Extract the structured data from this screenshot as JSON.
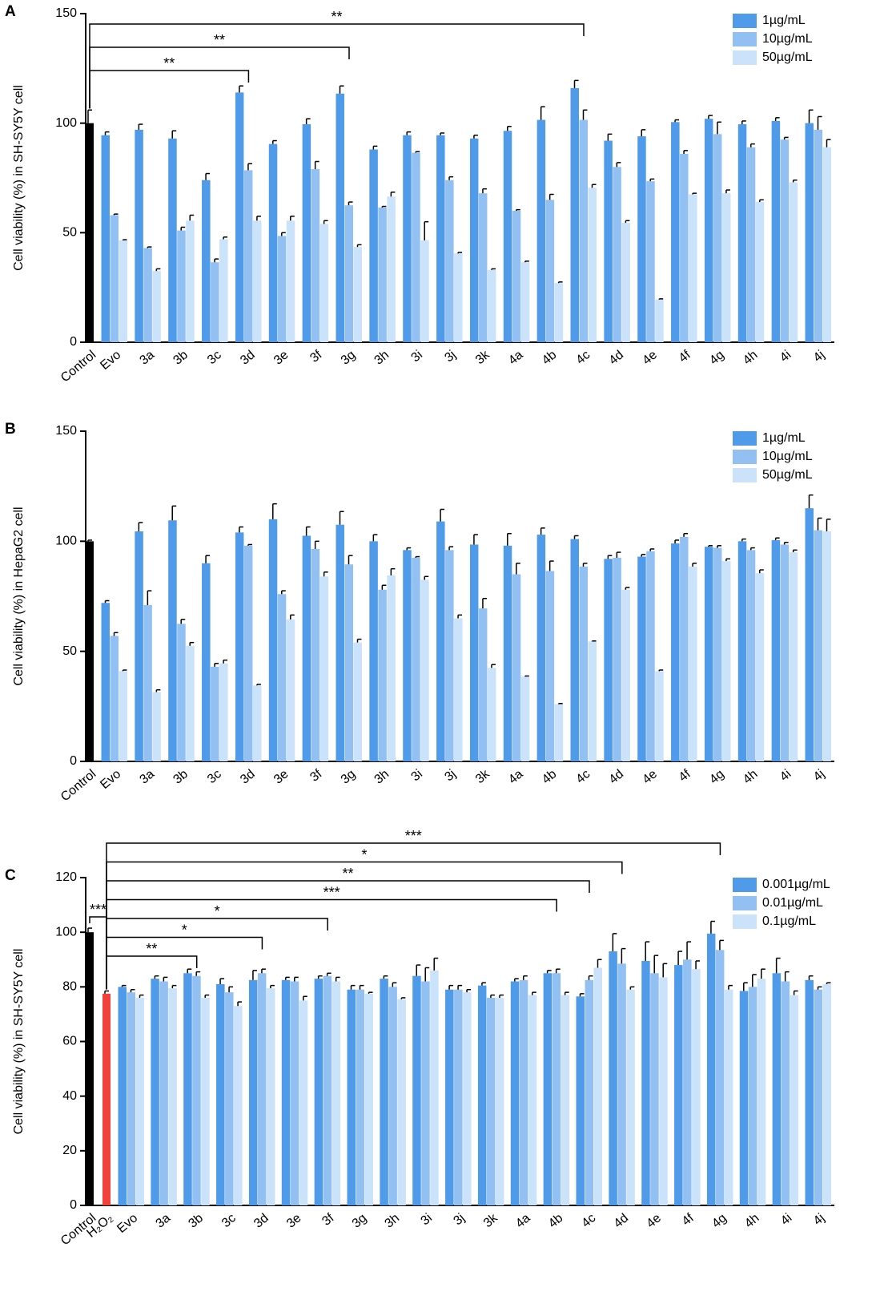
{
  "chart_data": [
    {
      "type": "bar",
      "panel_label": "A",
      "y_label": "Cell viability (%) in SH-SY5Y cell",
      "categories": [
        "Control",
        "Evo",
        "3a",
        "3b",
        "3c",
        "3d",
        "3e",
        "3f",
        "3g",
        "3h",
        "3i",
        "3j",
        "3k",
        "4a",
        "4b",
        "4c",
        "4d",
        "4e",
        "4f",
        "4g",
        "4h",
        "4i",
        "4j"
      ],
      "reference_bars": [
        {
          "value": 100,
          "error": 6,
          "color": "#000000"
        }
      ],
      "series": [
        {
          "name": "1µg/mL",
          "color": "#4f9bea",
          "values": [
            null,
            94.5,
            97,
            93,
            74,
            114,
            90.5,
            99.5,
            113.5,
            88,
            94.5,
            94.5,
            93,
            96.5,
            101.5,
            116,
            92,
            94,
            100.5,
            102,
            99.5,
            101,
            100
          ],
          "errors": [
            null,
            1.5,
            2.5,
            3.5,
            3,
            3,
            1.5,
            2.5,
            3.5,
            1.5,
            1.5,
            1,
            1.5,
            2,
            6,
            3.5,
            3,
            3,
            1,
            1.5,
            1.5,
            1.5,
            6
          ]
        },
        {
          "name": "10µg/mL",
          "color": "#93c0f3",
          "values": [
            null,
            58,
            43,
            51,
            36.5,
            78.5,
            48.5,
            79,
            62.5,
            61.5,
            86.5,
            74,
            68,
            60,
            65,
            101.5,
            80,
            73.5,
            86,
            95,
            89,
            92.5,
            97
          ],
          "errors": [
            null,
            0.5,
            0.5,
            1.5,
            1.5,
            3,
            1.5,
            3.5,
            1.5,
            0.5,
            0.5,
            1.5,
            2,
            0.5,
            2.5,
            4.5,
            2,
            1,
            1.5,
            5.5,
            1.5,
            1,
            6
          ]
        },
        {
          "name": "50µg/mL",
          "color": "#cbe2fb",
          "values": [
            null,
            46.5,
            32.5,
            55.5,
            47,
            55.5,
            55.5,
            54,
            43.5,
            66.5,
            46.5,
            40.5,
            33,
            36.5,
            27,
            70.5,
            54.5,
            19.5,
            67.5,
            68,
            64,
            73,
            89
          ],
          "errors": [
            null,
            0.3,
            1,
            2.5,
            1,
            2,
            2,
            1.5,
            1,
            2,
            8.5,
            0.5,
            0.5,
            0.5,
            0.5,
            1.5,
            1,
            0.3,
            0.5,
            1.5,
            1,
            1,
            3.5
          ]
        }
      ],
      "ylim": [
        0,
        150
      ],
      "yticks": [
        0,
        50,
        100,
        150
      ],
      "brackets": [
        {
          "from": "Control",
          "to": "3d",
          "label": "**"
        },
        {
          "from": "Control",
          "to": "3g",
          "label": "**"
        },
        {
          "from": "Control",
          "to": "4c",
          "label": "**"
        }
      ]
    },
    {
      "type": "bar",
      "panel_label": "B",
      "y_label": "Cell viability (%) in HepaG2 cell",
      "categories": [
        "Control",
        "Evo",
        "3a",
        "3b",
        "3c",
        "3d",
        "3e",
        "3f",
        "3g",
        "3h",
        "3i",
        "3j",
        "3k",
        "4a",
        "4b",
        "4c",
        "4d",
        "4e",
        "4f",
        "4g",
        "4h",
        "4i",
        "4j"
      ],
      "reference_bars": [
        {
          "value": 100,
          "error": 0.5,
          "color": "#000000"
        }
      ],
      "series": [
        {
          "name": "1µg/mL",
          "color": "#4f9bea",
          "values": [
            null,
            72,
            104.5,
            109.5,
            90,
            104,
            110,
            102.5,
            107.5,
            100,
            96,
            109,
            98.5,
            98,
            103,
            101,
            92,
            93,
            99,
            97.5,
            100,
            100.5,
            115
          ],
          "errors": [
            null,
            1,
            4,
            6.5,
            3.5,
            2.5,
            7,
            4,
            6,
            3,
            1,
            5.5,
            4.5,
            5.5,
            3,
            1.5,
            1.5,
            1,
            1.5,
            0.5,
            1,
            1,
            6
          ]
        },
        {
          "name": "10µg/mL",
          "color": "#93c0f3",
          "values": [
            null,
            57,
            71,
            62.5,
            43,
            98,
            76,
            96.5,
            89.5,
            78,
            92.5,
            96,
            69.5,
            85,
            86.5,
            88.5,
            92.5,
            95.5,
            102,
            97,
            96,
            98.5,
            105
          ],
          "errors": [
            null,
            1.5,
            6.5,
            2,
            1.5,
            0.5,
            1.5,
            3.5,
            4,
            2,
            0.5,
            1.5,
            4.5,
            5,
            4.5,
            1.5,
            2.5,
            1,
            1.5,
            1,
            1,
            1,
            5.5
          ]
        },
        {
          "name": "50µg/mL",
          "color": "#cbe2fb",
          "values": [
            null,
            41,
            31.5,
            52.5,
            44.5,
            34.5,
            64.5,
            84,
            54,
            84.5,
            82.5,
            65,
            42.5,
            38.5,
            26,
            54.5,
            78,
            41,
            88.5,
            91,
            85.5,
            95,
            104.5
          ],
          "errors": [
            null,
            0.5,
            1,
            1.5,
            1.5,
            0.5,
            2,
            2,
            1.5,
            3,
            1.5,
            1.5,
            1.5,
            0.3,
            0.3,
            0.2,
            1,
            0.5,
            1.5,
            1,
            1.5,
            1,
            5.5
          ]
        }
      ],
      "ylim": [
        0,
        150
      ],
      "yticks": [
        0,
        50,
        100,
        150
      ],
      "brackets": []
    },
    {
      "type": "bar",
      "panel_label": "C",
      "y_label": "Cell viability (%) in SH-SY5Y cell",
      "categories": [
        "Control",
        "H₂O₂",
        "Evo",
        "3a",
        "3b",
        "3c",
        "3d",
        "3e",
        "3f",
        "3g",
        "3h",
        "3i",
        "3j",
        "3k",
        "4a",
        "4b",
        "4c",
        "4d",
        "4e",
        "4f",
        "4g",
        "4h",
        "4i",
        "4j"
      ],
      "reference_bars": [
        {
          "value": 100,
          "error": 1.5,
          "color": "#000000"
        },
        {
          "value": 77.5,
          "error": 1,
          "color": "#f2403a"
        }
      ],
      "series": [
        {
          "name": "0.001µg/mL",
          "color": "#4f9bea",
          "values": [
            null,
            null,
            80,
            83,
            85,
            81,
            82.5,
            82.5,
            83,
            79,
            83,
            84,
            79,
            80.5,
            82,
            85,
            76.5,
            93,
            89.5,
            88,
            99.5,
            78.5,
            85,
            82.5
          ],
          "errors": [
            null,
            null,
            0.5,
            1,
            1.5,
            2,
            3.5,
            1,
            1,
            1.5,
            1,
            4,
            1.5,
            1,
            1,
            1,
            1,
            6.5,
            7,
            5,
            4.5,
            3,
            5.5,
            1.5
          ]
        },
        {
          "name": "0.01µg/mL",
          "color": "#93c0f3",
          "values": [
            null,
            null,
            78,
            82,
            84,
            78,
            85,
            82,
            84,
            79,
            80,
            82,
            79,
            76,
            82.5,
            85,
            82.5,
            88.5,
            85,
            90,
            93.5,
            80,
            82,
            79
          ],
          "errors": [
            null,
            null,
            1,
            1.5,
            1.5,
            2,
            1.5,
            1.5,
            1,
            1.5,
            1.5,
            5,
            1.5,
            1,
            1.5,
            1.5,
            1.5,
            5.5,
            6.5,
            6.5,
            3.5,
            4.5,
            3.5,
            1
          ]
        },
        {
          "name": "0.1µg/mL",
          "color": "#cbe2fb",
          "values": [
            null,
            null,
            76,
            79.5,
            76,
            73,
            79.5,
            75,
            82,
            77.5,
            75.5,
            86,
            78,
            76,
            77,
            77,
            87,
            79,
            83.5,
            86.5,
            79,
            83,
            77,
            81
          ],
          "errors": [
            null,
            null,
            1,
            1,
            1,
            1.5,
            1,
            1.5,
            1.5,
            0.5,
            0.5,
            4.5,
            1,
            1,
            1,
            1,
            3,
            1,
            5,
            3,
            1.5,
            3.5,
            1.5,
            0.5
          ]
        }
      ],
      "ylim": [
        0,
        120
      ],
      "yticks": [
        0,
        20,
        40,
        60,
        80,
        100,
        120
      ],
      "brackets": [
        {
          "from": "Control",
          "to": "H₂O₂",
          "label": "***"
        },
        {
          "from": "H₂O₂",
          "to": "3b",
          "label": "**"
        },
        {
          "from": "H₂O₂",
          "to": "3d",
          "label": "*"
        },
        {
          "from": "H₂O₂",
          "to": "3f",
          "label": "*"
        },
        {
          "from": "H₂O₂",
          "to": "4b",
          "label": "***"
        },
        {
          "from": "H₂O₂",
          "to": "4c",
          "label": "**"
        },
        {
          "from": "H₂O₂",
          "to": "4d",
          "label": "*"
        },
        {
          "from": "H₂O₂",
          "to": "4g",
          "label": "***"
        }
      ]
    }
  ]
}
